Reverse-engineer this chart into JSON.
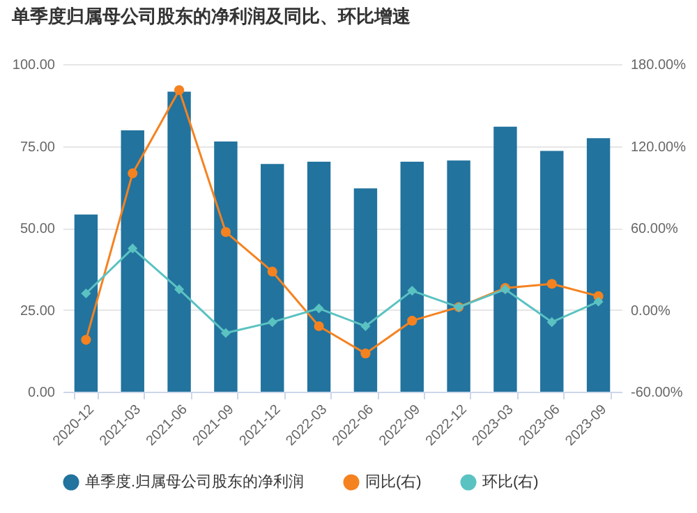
{
  "chart_data": {
    "type": "bar",
    "title": "单季度归属母公司股东的净利润及同比、环比增速",
    "categories": [
      "2020-12",
      "2021-03",
      "2021-06",
      "2021-09",
      "2021-12",
      "2022-03",
      "2022-06",
      "2022-09",
      "2022-12",
      "2023-03",
      "2023-06",
      "2023-09"
    ],
    "series": [
      {
        "name": "单季度.归属母公司股东的净利润",
        "color": "#22739e",
        "values": [
          54.1,
          79.8,
          91.6,
          76.4,
          69.5,
          70.2,
          62.1,
          70.2,
          70.6,
          80.9,
          73.5,
          77.4
        ]
      },
      {
        "name": "同比(右)",
        "type": "line",
        "axis": "y2",
        "marker": "circle",
        "color": "#f58220",
        "values": [
          -22,
          100,
          161,
          57,
          28,
          -12,
          -32,
          -8,
          2,
          16,
          19,
          10
        ]
      },
      {
        "name": "环比(右)",
        "type": "line",
        "axis": "y2",
        "marker": "diamond",
        "color": "#5bc2c2",
        "values": [
          12,
          45,
          15,
          -17,
          -9,
          1,
          -12,
          14,
          2,
          15,
          -9,
          6
        ]
      }
    ],
    "ylim": [
      0,
      100
    ],
    "yticks": [
      {
        "value": 0,
        "label": "0.00"
      },
      {
        "value": 25,
        "label": "25.00"
      },
      {
        "value": 50,
        "label": "50.00"
      },
      {
        "value": 75,
        "label": "75.00"
      },
      {
        "value": 100,
        "label": "100.00"
      }
    ],
    "y2lim": [
      -60,
      180
    ],
    "y2ticks": [
      {
        "value": -60,
        "label": "-60.00%"
      },
      {
        "value": 0,
        "label": "0.00%"
      },
      {
        "value": 60,
        "label": "60.00%"
      },
      {
        "value": 120,
        "label": "120.00%"
      },
      {
        "value": 180,
        "label": "180.00%"
      }
    ],
    "grid": "y",
    "legend": "bottom"
  }
}
